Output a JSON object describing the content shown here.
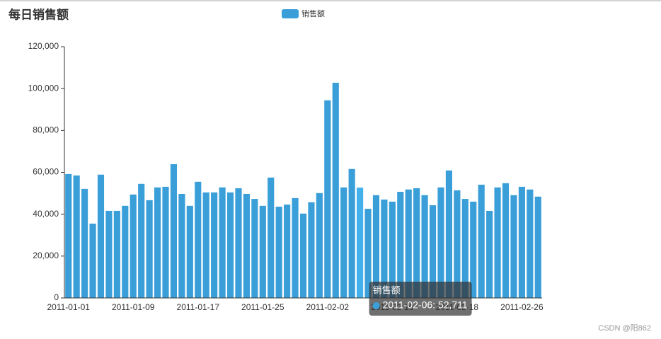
{
  "chart_data": {
    "type": "bar",
    "title": "每日销售额",
    "series": [
      {
        "name": "销售额",
        "color": "#3a9fd9",
        "values": [
          59200,
          58500,
          52100,
          35500,
          58900,
          41600,
          41600,
          44000,
          49400,
          54500,
          46700,
          52800,
          53100,
          63900,
          49700,
          44000,
          55500,
          50400,
          50400,
          52800,
          50400,
          52400,
          49700,
          47300,
          44000,
          57500,
          43600,
          44600,
          47700,
          40300,
          45700,
          50100,
          94400,
          102800,
          52800,
          61600,
          52711,
          42600,
          49100,
          47000,
          46000,
          50700,
          51800,
          52400,
          49100,
          44300,
          52800,
          60900,
          51400,
          47300,
          46000,
          54100,
          41600,
          52800,
          54800,
          49100,
          53100,
          51800,
          48400
        ]
      }
    ],
    "categories": [
      "2011-01-01",
      "2011-01-02",
      "2011-01-03",
      "2011-01-04",
      "2011-01-05",
      "2011-01-06",
      "2011-01-07",
      "2011-01-08",
      "2011-01-09",
      "2011-01-10",
      "2011-01-11",
      "2011-01-12",
      "2011-01-13",
      "2011-01-14",
      "2011-01-15",
      "2011-01-16",
      "2011-01-17",
      "2011-01-18",
      "2011-01-19",
      "2011-01-20",
      "2011-01-21",
      "2011-01-22",
      "2011-01-23",
      "2011-01-24",
      "2011-01-25",
      "2011-01-26",
      "2011-01-27",
      "2011-01-28",
      "2011-01-29",
      "2011-01-30",
      "2011-01-31",
      "2011-02-01",
      "2011-02-02",
      "2011-02-03",
      "2011-02-04",
      "2011-02-05",
      "2011-02-06",
      "2011-02-07",
      "2011-02-08",
      "2011-02-09",
      "2011-02-10",
      "2011-02-11",
      "2011-02-12",
      "2011-02-13",
      "2011-02-14",
      "2011-02-15",
      "2011-02-16",
      "2011-02-17",
      "2011-02-18",
      "2011-02-19",
      "2011-02-20",
      "2011-02-21",
      "2011-02-22",
      "2011-02-23",
      "2011-02-24",
      "2011-02-25",
      "2011-02-26",
      "2011-02-27",
      "2011-02-28"
    ],
    "x_label_interval": 8,
    "ylim": [
      0,
      120000
    ],
    "yticks": [
      0,
      {
        "value": 20000,
        "label": "20,000"
      },
      {
        "value": 40000,
        "label": "40,000"
      },
      {
        "value": 60000,
        "label": "60,000"
      },
      {
        "value": 80000,
        "label": "80,000"
      },
      {
        "value": 100000,
        "label": "100,000"
      },
      {
        "value": 120000,
        "label": "120,000"
      }
    ],
    "legend": "top",
    "tooltip": {
      "index": 36,
      "title": "销售额",
      "text": "2011-02-06: 52,711",
      "highlight_color": "#45b1ec"
    }
  },
  "watermark": "CSDN @阳862"
}
